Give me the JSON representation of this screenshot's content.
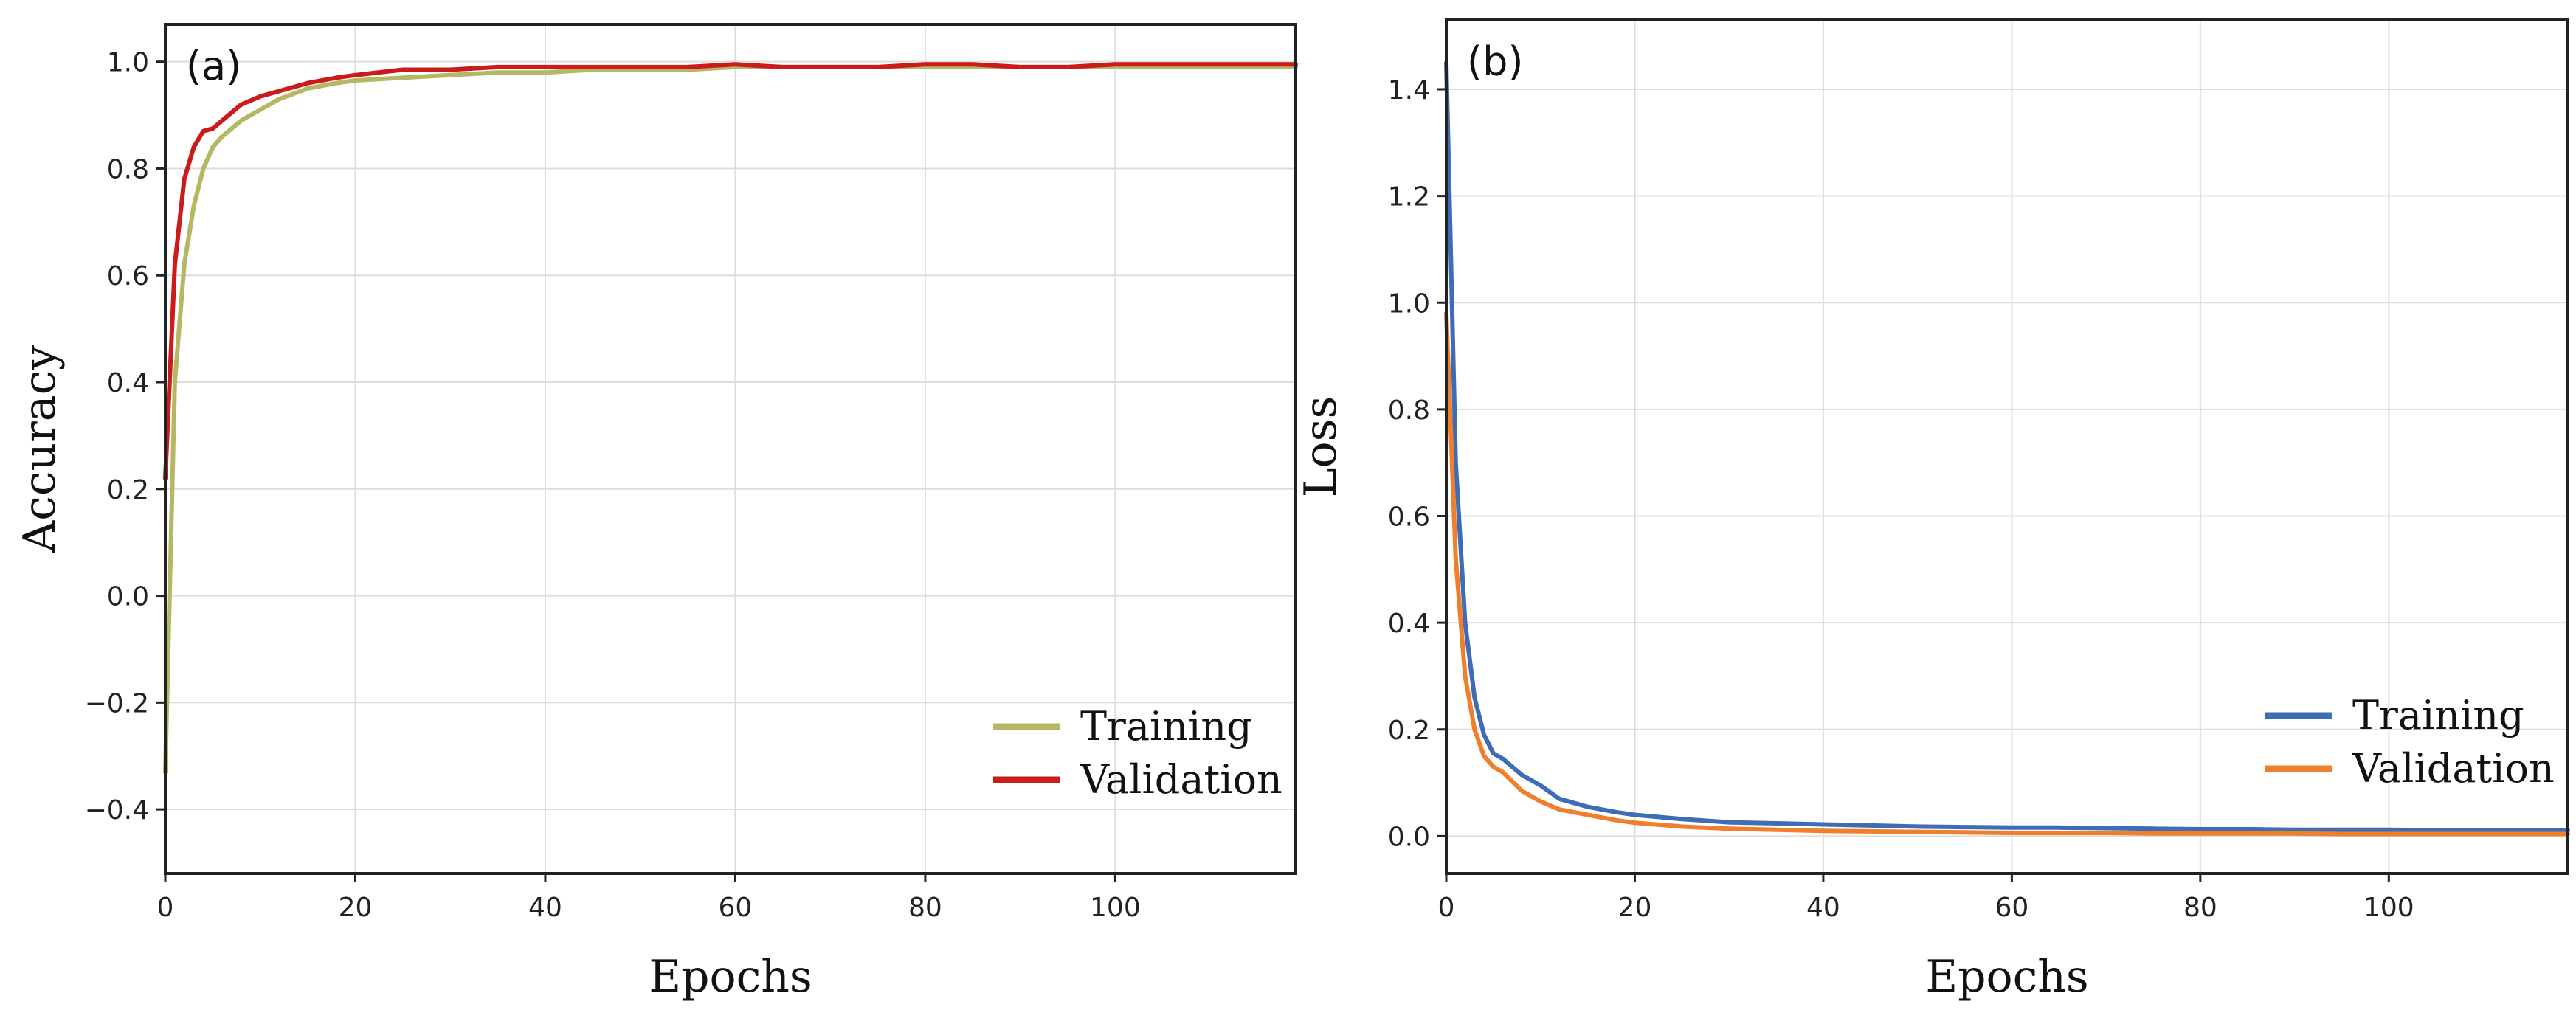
{
  "chart_data": [
    {
      "type": "line",
      "panel_label": "(a)",
      "xlabel": "Epochs",
      "ylabel": "Accuracy",
      "xlim": [
        0,
        119
      ],
      "ylim": [
        -0.52,
        1.07
      ],
      "x_ticks": [
        0,
        20,
        40,
        60,
        80,
        100
      ],
      "y_ticks": [
        -0.4,
        -0.2,
        0.0,
        0.2,
        0.4,
        0.6,
        0.8,
        1.0
      ],
      "x_tick_labels": [
        "0",
        "20",
        "40",
        "60",
        "80",
        "100"
      ],
      "y_tick_labels": [
        "−0.4",
        "−0.2",
        "0.0",
        "0.2",
        "0.4",
        "0.6",
        "0.8",
        "1.0"
      ],
      "grid": true,
      "legend_position": "lower-right",
      "series": [
        {
          "name": "Training",
          "color": "#b5b863",
          "x": [
            0,
            1,
            2,
            3,
            4,
            5,
            6,
            8,
            10,
            12,
            15,
            18,
            20,
            25,
            30,
            35,
            40,
            45,
            50,
            55,
            60,
            65,
            70,
            75,
            80,
            85,
            90,
            95,
            100,
            105,
            110,
            115,
            119
          ],
          "y": [
            -0.33,
            0.4,
            0.62,
            0.73,
            0.8,
            0.84,
            0.86,
            0.89,
            0.91,
            0.93,
            0.95,
            0.96,
            0.965,
            0.97,
            0.975,
            0.98,
            0.98,
            0.985,
            0.985,
            0.985,
            0.99,
            0.99,
            0.99,
            0.99,
            0.99,
            0.99,
            0.99,
            0.99,
            0.99,
            0.99,
            0.99,
            0.99,
            0.99
          ]
        },
        {
          "name": "Validation",
          "color": "#cc1b1b",
          "x": [
            0,
            1,
            2,
            3,
            4,
            5,
            6,
            8,
            10,
            12,
            15,
            18,
            20,
            25,
            30,
            35,
            40,
            45,
            50,
            55,
            60,
            65,
            70,
            75,
            80,
            85,
            90,
            95,
            100,
            105,
            110,
            115,
            119
          ],
          "y": [
            0.22,
            0.62,
            0.78,
            0.84,
            0.87,
            0.875,
            0.89,
            0.92,
            0.935,
            0.945,
            0.96,
            0.97,
            0.975,
            0.985,
            0.985,
            0.99,
            0.99,
            0.99,
            0.99,
            0.99,
            0.995,
            0.99,
            0.99,
            0.99,
            0.995,
            0.995,
            0.99,
            0.99,
            0.995,
            0.995,
            0.995,
            0.995,
            0.995
          ]
        }
      ]
    },
    {
      "type": "line",
      "panel_label": "(b)",
      "xlabel": "Epochs",
      "ylabel": "Loss",
      "xlim": [
        0,
        119
      ],
      "ylim": [
        -0.07,
        1.53
      ],
      "x_ticks": [
        0,
        20,
        40,
        60,
        80,
        100
      ],
      "y_ticks": [
        0.0,
        0.2,
        0.4,
        0.6,
        0.8,
        1.0,
        1.2,
        1.4
      ],
      "x_tick_labels": [
        "0",
        "20",
        "40",
        "60",
        "80",
        "100"
      ],
      "y_tick_labels": [
        "0.0",
        "0.2",
        "0.4",
        "0.6",
        "0.8",
        "1.0",
        "1.2",
        "1.4"
      ],
      "grid": true,
      "legend_position": "lower-right",
      "series": [
        {
          "name": "Training",
          "color": "#3f6db5",
          "x": [
            0,
            1,
            2,
            3,
            4,
            5,
            6,
            8,
            10,
            12,
            15,
            18,
            20,
            25,
            30,
            35,
            40,
            45,
            50,
            55,
            60,
            65,
            70,
            75,
            80,
            85,
            90,
            95,
            100,
            105,
            110,
            115,
            119
          ],
          "y": [
            1.45,
            0.7,
            0.4,
            0.26,
            0.19,
            0.155,
            0.145,
            0.115,
            0.095,
            0.07,
            0.055,
            0.045,
            0.04,
            0.032,
            0.026,
            0.024,
            0.022,
            0.02,
            0.018,
            0.017,
            0.016,
            0.016,
            0.015,
            0.014,
            0.013,
            0.013,
            0.012,
            0.012,
            0.012,
            0.011,
            0.011,
            0.011,
            0.011
          ]
        },
        {
          "name": "Validation",
          "color": "#f07f2d",
          "x": [
            0,
            1,
            2,
            3,
            4,
            5,
            6,
            8,
            10,
            12,
            15,
            18,
            20,
            25,
            30,
            35,
            40,
            45,
            50,
            55,
            60,
            65,
            70,
            75,
            80,
            85,
            90,
            95,
            100,
            105,
            110,
            115,
            119
          ],
          "y": [
            0.98,
            0.52,
            0.3,
            0.2,
            0.15,
            0.13,
            0.12,
            0.085,
            0.065,
            0.05,
            0.04,
            0.03,
            0.025,
            0.018,
            0.014,
            0.012,
            0.01,
            0.009,
            0.008,
            0.007,
            0.006,
            0.006,
            0.006,
            0.005,
            0.005,
            0.005,
            0.005,
            0.004,
            0.004,
            0.004,
            0.004,
            0.004,
            0.004
          ]
        }
      ]
    }
  ]
}
